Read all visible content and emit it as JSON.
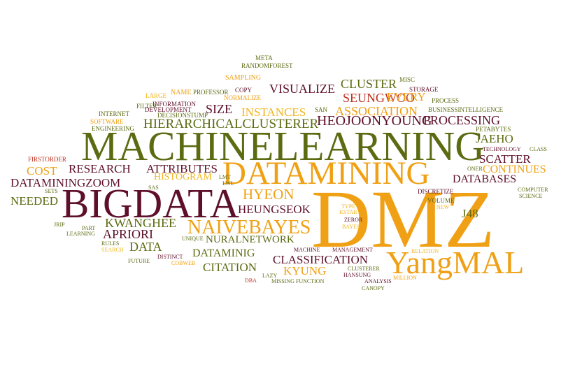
{
  "palette": {
    "olive": "#5b6b12",
    "maroon": "#5e0f2a",
    "orange": "#f0a014",
    "red": "#c0301e",
    "darkred": "#8a1a24",
    "brown": "#7a3a14",
    "gold": "#f2b51d"
  },
  "words": [
    {
      "text": "DMZ",
      "color": "orange"
    },
    {
      "text": "MACHINELEARNING",
      "color": "olive"
    },
    {
      "text": "BIGDATA",
      "color": "maroon"
    },
    {
      "text": "DATAMINING",
      "color": "orange"
    },
    {
      "text": "YangMAL",
      "color": "orange"
    },
    {
      "text": "HIERARCHICALCLUSTERER",
      "color": "olive"
    },
    {
      "text": "NAIVEBAYES",
      "color": "orange"
    },
    {
      "text": "HEOJOONYOUNG",
      "color": "maroon"
    },
    {
      "text": "HYEON",
      "color": "orange"
    },
    {
      "text": "NURALNETWORK",
      "color": "olive"
    },
    {
      "text": "DATAMINIG",
      "color": "olive"
    },
    {
      "text": "PROCESSING",
      "color": "maroon"
    },
    {
      "text": "ASSOCIATION",
      "color": "orange"
    },
    {
      "text": "SEUNGWOO",
      "color": "red"
    },
    {
      "text": "VISUALIZE",
      "color": "maroon"
    },
    {
      "text": "CLUSTER",
      "color": "olive"
    },
    {
      "text": "INSTANCES",
      "color": "gold"
    },
    {
      "text": "SIZE",
      "color": "maroon"
    },
    {
      "text": "EVERY",
      "color": "orange"
    },
    {
      "text": "KWANGHEE",
      "color": "olive"
    },
    {
      "text": "APRIORI",
      "color": "maroon"
    },
    {
      "text": "DATA",
      "color": "olive"
    },
    {
      "text": "HEUNGSEOK",
      "color": "maroon"
    },
    {
      "text": "CLASSIFICATION",
      "color": "maroon"
    },
    {
      "text": "CITATION",
      "color": "olive"
    },
    {
      "text": "KYUNG",
      "color": "orange"
    },
    {
      "text": "DATAMININGZOOM",
      "color": "maroon"
    },
    {
      "text": "RESEARCH",
      "color": "maroon"
    },
    {
      "text": "ATTRIBUTES",
      "color": "maroon"
    },
    {
      "text": "HISTOGRAM",
      "color": "gold"
    },
    {
      "text": "COST",
      "color": "orange"
    },
    {
      "text": "NEEDED",
      "color": "olive"
    },
    {
      "text": "SCATTER",
      "color": "maroon"
    },
    {
      "text": "CONTINUES",
      "color": "orange"
    },
    {
      "text": "DATABASES",
      "color": "maroon"
    },
    {
      "text": "JAEHO",
      "color": "olive"
    },
    {
      "text": "J48",
      "color": "olive"
    },
    {
      "text": "SAMPLING",
      "color": "orange"
    },
    {
      "text": "RANDOMFOREST",
      "color": "olive"
    },
    {
      "text": "META",
      "color": "olive"
    },
    {
      "text": "COPY",
      "color": "maroon"
    },
    {
      "text": "NORMALIZE",
      "color": "orange"
    },
    {
      "text": "PROFESSOR",
      "color": "olive"
    },
    {
      "text": "NAME",
      "color": "orange"
    },
    {
      "text": "LARGE",
      "color": "gold"
    },
    {
      "text": "FILTER",
      "color": "olive"
    },
    {
      "text": "INFORMATION",
      "color": "maroon"
    },
    {
      "text": "DECISIONSTUMP",
      "color": "olive"
    },
    {
      "text": "DEVELOPMENT",
      "color": "maroon"
    },
    {
      "text": "INTERNET",
      "color": "olive"
    },
    {
      "text": "SOFTWARE",
      "color": "orange"
    },
    {
      "text": "ENGINEERING",
      "color": "olive"
    },
    {
      "text": "MISC",
      "color": "olive"
    },
    {
      "text": "STORAGE",
      "color": "maroon"
    },
    {
      "text": "PROCESS",
      "color": "olive"
    },
    {
      "text": "SAN",
      "color": "olive"
    },
    {
      "text": "BUSINESSINTELLIGENCE",
      "color": "olive"
    },
    {
      "text": "PETABYTES",
      "color": "olive"
    },
    {
      "text": "TECHNOLOGY",
      "color": "maroon"
    },
    {
      "text": "CLASS",
      "color": "olive"
    },
    {
      "text": "FIRSTORDER",
      "color": "red"
    },
    {
      "text": "ONER",
      "color": "olive"
    },
    {
      "text": "SAS",
      "color": "olive"
    },
    {
      "text": "LMT",
      "color": "olive"
    },
    {
      "text": "LWL",
      "color": "olive"
    },
    {
      "text": "SETS",
      "color": "olive"
    },
    {
      "text": "DISCRETIZE",
      "color": "maroon"
    },
    {
      "text": "COMPUTER",
      "color": "olive"
    },
    {
      "text": "SCIENCE",
      "color": "olive"
    },
    {
      "text": "VOLUME",
      "color": "olive"
    },
    {
      "text": "NEW",
      "color": "gold"
    },
    {
      "text": "TYPE",
      "color": "gold"
    },
    {
      "text": "KSTAR",
      "color": "gold"
    },
    {
      "text": "ZEROR",
      "color": "maroon"
    },
    {
      "text": "BAYES",
      "color": "gold"
    },
    {
      "text": "JRIP",
      "color": "olive"
    },
    {
      "text": "PART",
      "color": "olive"
    },
    {
      "text": "LEARNING",
      "color": "olive"
    },
    {
      "text": "RULES",
      "color": "olive"
    },
    {
      "text": "SEARCH",
      "color": "gold"
    },
    {
      "text": "UNIQUE",
      "color": "olive"
    },
    {
      "text": "MACHINE",
      "color": "maroon"
    },
    {
      "text": "MANAGEMENT",
      "color": "maroon"
    },
    {
      "text": "RELATION",
      "color": "gold"
    },
    {
      "text": "FUTURE",
      "color": "olive"
    },
    {
      "text": "DISTINCT",
      "color": "maroon"
    },
    {
      "text": "COBWEB",
      "color": "orange"
    },
    {
      "text": "CLUSTERER",
      "color": "olive"
    },
    {
      "text": "HANSUNG",
      "color": "maroon"
    },
    {
      "text": "ANALYSIS",
      "color": "maroon"
    },
    {
      "text": "CANOPY",
      "color": "olive"
    },
    {
      "text": "MILLION",
      "color": "orange"
    },
    {
      "text": "DBA",
      "color": "red"
    },
    {
      "text": "LAZY",
      "color": "olive"
    },
    {
      "text": "MISSING FUNCTION",
      "color": "olive"
    }
  ]
}
